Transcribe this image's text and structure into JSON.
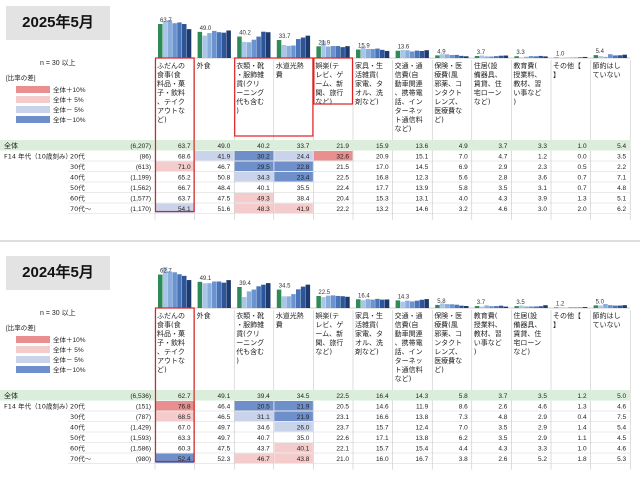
{
  "panels": [
    {
      "year": "2025年5月",
      "n_note": "n = 30 以上",
      "legend_title": "[比率の差]",
      "legend_items": [
        "全体＋10%",
        "全体＋ 5%",
        "全体－ 5%",
        "全体－10%"
      ],
      "overall_label": "全体",
      "group_label": "F14 年代（10歳刻み）",
      "column_labels": [
        "ふだんの食事(食料品・菓子・飲料、テイクアウトなど)",
        "外食",
        "衣類・靴・服飾雑貨(クリーニング代も含む)",
        "水道光熱費",
        "娯楽(テレビ、ゲーム、新聞、旅行など)",
        "家具・生活雑貨(家電、タオル、洗剤など)",
        "交通・通信費(自動車関連、携帯電話、インターネット通信料など)",
        "保険・医療費(風邪薬、コンタクトレンズ、医療費など)",
        "住居(設備器具、賃貸、住宅ローンなど)",
        "教育費(授業料、教材、習い事など)",
        "その他【】",
        "節約はしていない"
      ],
      "chart_data": {
        "type": "bar",
        "categories": [
          "ふだんの食事",
          "外食",
          "衣類・靴・服飾雑貨",
          "水道光熱費",
          "娯楽",
          "家具・生活雑貨",
          "交通・通信費",
          "保険・医療費",
          "住居",
          "教育費",
          "その他",
          "節約はしていない"
        ],
        "overall_values": [
          63.7,
          49.0,
          40.2,
          33.7,
          21.9,
          15.9,
          13.6,
          4.9,
          3.7,
          3.3,
          1.0,
          5.4
        ],
        "overall_n": "(6,207)",
        "series": [
          {
            "name": "20代",
            "n": "(86)",
            "values": [
              68.6,
              41.9,
              30.2,
              24.4,
              32.6,
              20.9,
              15.1,
              7.0,
              4.7,
              1.2,
              0.0,
              3.5
            ]
          },
          {
            "name": "30代",
            "n": "(613)",
            "values": [
              71.0,
              46.7,
              29.5,
              22.8,
              21.5,
              17.0,
              14.5,
              6.9,
              2.9,
              2.3,
              0.5,
              2.2
            ]
          },
          {
            "name": "40代",
            "n": "(1,199)",
            "values": [
              65.2,
              50.8,
              34.3,
              23.4,
              22.5,
              16.8,
              12.3,
              5.6,
              2.8,
              3.6,
              0.7,
              7.1
            ]
          },
          {
            "name": "50代",
            "n": "(1,562)",
            "values": [
              66.7,
              48.4,
              40.1,
              35.5,
              22.4,
              17.7,
              13.9,
              5.8,
              3.5,
              3.1,
              0.7,
              4.8
            ]
          },
          {
            "name": "60代",
            "n": "(1,577)",
            "values": [
              63.7,
              47.5,
              49.3,
              38.4,
              20.4,
              15.3,
              13.1,
              4.0,
              4.3,
              3.9,
              1.3,
              5.1
            ]
          },
          {
            "name": "70代～",
            "n": "(1,170)",
            "values": [
              54.1,
              51.6,
              48.3,
              41.9,
              22.2,
              13.2,
              14.6,
              3.2,
              4.6,
              3.0,
              2.0,
              6.2
            ]
          }
        ],
        "ylim": [
          0,
          75
        ]
      }
    },
    {
      "year": "2024年5月",
      "n_note": "n = 30 以上",
      "legend_title": "[比率の差]",
      "legend_items": [
        "全体＋10%",
        "全体＋ 5%",
        "全体－ 5%",
        "全体－10%"
      ],
      "overall_label": "全体",
      "group_label": "F14 年代（10歳刻み）",
      "column_labels": [
        "ふだんの食事(食料品・菓子・飲料、テイクアウトなど)",
        "外食",
        "衣類・靴・服飾雑貨(クリーニング代も含む)",
        "水道光熱費",
        "娯楽(テレビ、ゲーム、新聞、旅行など)",
        "家具・生活雑貨(家電、タオル、洗剤など)",
        "交通・通信費(自動車関連、携帯電話、インターネット通信料など)",
        "保険・医療費(風邪薬、コンタクトレンズ、医療費など)",
        "教育費(授業料、教材、習い事など)",
        "住居(設備器具、賃貸、住宅ローンなど)",
        "その他【】",
        "節約はしていない"
      ],
      "chart_data": {
        "type": "bar",
        "categories": [
          "ふだんの食事",
          "外食",
          "衣類・靴・服飾雑貨",
          "水道光熱費",
          "娯楽",
          "家具・生活雑貨",
          "交通・通信費",
          "保険・医療費",
          "教育費",
          "住居",
          "その他",
          "節約はしていない"
        ],
        "overall_values": [
          62.7,
          49.1,
          39.4,
          34.5,
          22.5,
          16.4,
          14.3,
          5.8,
          3.7,
          3.5,
          1.2,
          5.0
        ],
        "overall_n": "(6,536)",
        "series": [
          {
            "name": "20代",
            "n": "(151)",
            "values": [
              76.8,
              46.4,
              20.5,
              21.9,
              20.5,
              14.6,
              11.9,
              8.6,
              2.6,
              4.6,
              1.3,
              4.6
            ]
          },
          {
            "name": "30代",
            "n": "(787)",
            "values": [
              68.5,
              46.5,
              31.1,
              21.9,
              23.1,
              16.6,
              13.8,
              7.3,
              4.8,
              2.9,
              0.4,
              7.5
            ]
          },
          {
            "name": "40代",
            "n": "(1,429)",
            "values": [
              67.0,
              49.7,
              34.6,
              26.0,
              23.7,
              15.7,
              12.4,
              7.0,
              3.5,
              2.9,
              1.4,
              5.4
            ]
          },
          {
            "name": "50代",
            "n": "(1,593)",
            "values": [
              63.3,
              49.7,
              40.7,
              35.0,
              22.6,
              17.1,
              13.8,
              6.2,
              3.5,
              2.9,
              1.1,
              4.5
            ]
          },
          {
            "name": "60代",
            "n": "(1,586)",
            "values": [
              60.3,
              47.5,
              43.7,
              40.1,
              22.1,
              15.7,
              15.4,
              4.4,
              4.3,
              3.3,
              1.0,
              4.6
            ]
          },
          {
            "name": "70代～",
            "n": "(980)",
            "values": [
              52.4,
              52.3,
              46.7,
              43.8,
              21.0,
              16.0,
              16.7,
              3.8,
              2.6,
              5.2,
              1.8,
              5.3
            ]
          }
        ],
        "ylim": [
          0,
          75
        ]
      }
    }
  ],
  "colors": {
    "plus10": "#e98f8f",
    "plus5": "#f5cccc",
    "minus5": "#c9d3ea",
    "minus10": "#6e8fc9",
    "series": [
      "#2e8b57",
      "#a9c6e8",
      "#8aaedc",
      "#6b93cf",
      "#4a74b8",
      "#2d5597",
      "#1c3a6e"
    ],
    "highlight": "#e02020",
    "overall_row": "#dbeedb"
  }
}
